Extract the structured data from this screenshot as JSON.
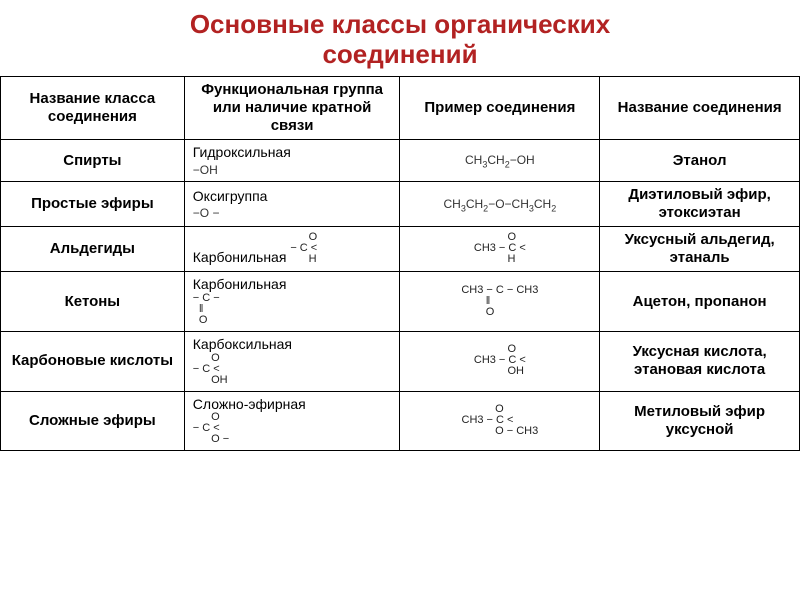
{
  "title_line1": "Основные классы органических",
  "title_line2": "соединений",
  "title_color": "#b22222",
  "title_fontsize": 26,
  "table": {
    "border_color": "#000000",
    "background": "#ffffff",
    "header_fontsize": 15,
    "cell_fontsize": 14,
    "columns": [
      "Название класса соединения",
      "Функциональная группа или наличие кратной связи",
      "Пример соединения",
      "Название соединения"
    ],
    "rows": [
      {
        "class_name": "Спирты",
        "fg_name": "Гидроксильная",
        "fg_formula": "−OH",
        "example": "CH3CH2−OH",
        "compound": "Этанол"
      },
      {
        "class_name": "Простые эфиры",
        "fg_name": "Оксигруппа",
        "fg_formula": "−O −",
        "example": "CH3CH2−O−CH3CH2",
        "compound": "Диэтиловый эфир, этоксиэтан"
      },
      {
        "class_name": "Альдегиды",
        "fg_name": "Карбонильная",
        "fg_formula_struct": "      O\n− C <\n      H",
        "example_struct": "           O\nCH3 − C <\n           H",
        "compound": "Уксусный альдегид, этаналь"
      },
      {
        "class_name": "Кетоны",
        "fg_name": "Карбонильная",
        "fg_formula_struct": "− C −\n  ‖\n  O",
        "example_struct": "CH3 − C − CH3\n        ‖\n        O",
        "compound": "Ацетон, пропанон"
      },
      {
        "class_name": "Карбоновые кислоты",
        "fg_name": "Карбоксильная",
        "fg_formula_struct": "      O\n− C <\n      OH",
        "example_struct": "           O\nCH3 − C <\n           OH",
        "compound": "Уксусная кислота, этановая кислота"
      },
      {
        "class_name": "Сложные эфиры",
        "fg_name": "Сложно-эфирная",
        "fg_formula_struct": "      O\n− C <\n      O −",
        "example_struct": "           O\nCH3 − C <\n           O − CH3",
        "compound": "Метиловый эфир уксусной"
      }
    ]
  }
}
